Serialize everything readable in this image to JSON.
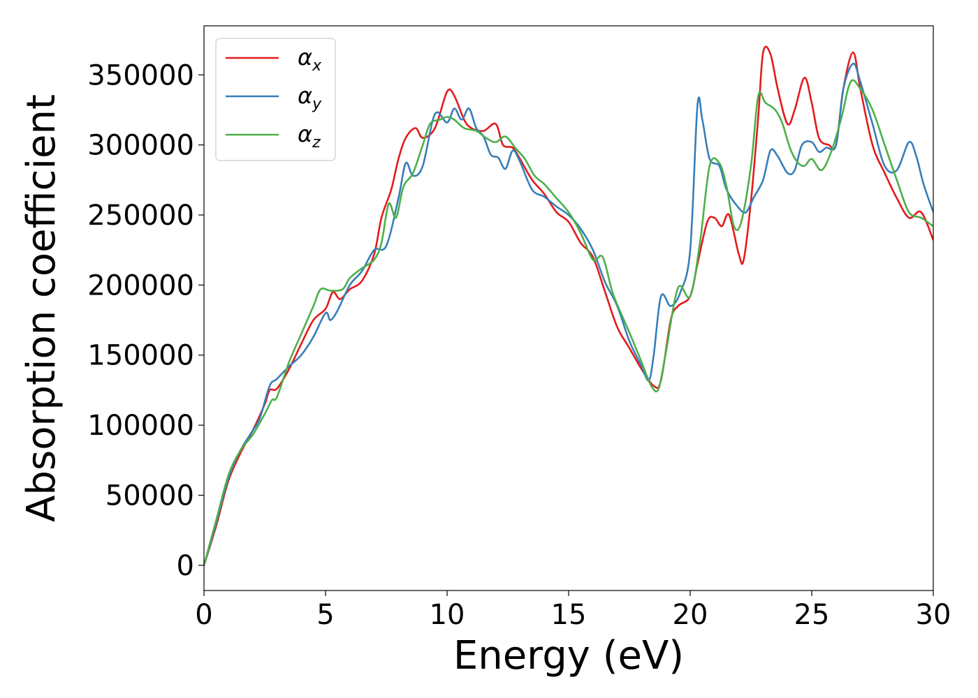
{
  "chart_data": {
    "type": "line",
    "title": "",
    "xlabel": "Energy (eV)",
    "ylabel": "Absorption coefficient",
    "xlim": [
      0,
      30
    ],
    "ylim": [
      -18000,
      385000
    ],
    "xticks": [
      0,
      5,
      10,
      15,
      20,
      25,
      30
    ],
    "xtick_labels": [
      "0",
      "5",
      "10",
      "15",
      "20",
      "25",
      "30"
    ],
    "yticks": [
      0,
      50000,
      100000,
      150000,
      200000,
      250000,
      300000,
      350000
    ],
    "ytick_labels": [
      "0",
      "50000",
      "100000",
      "150000",
      "200000",
      "250000",
      "300000",
      "350000"
    ],
    "grid": false,
    "legend_position": "top-left",
    "series": [
      {
        "name": "α",
        "subscript": "x",
        "color": "#e41a1c",
        "points": [
          [
            0,
            0
          ],
          [
            0.5,
            28000
          ],
          [
            1,
            60000
          ],
          [
            1.5,
            80000
          ],
          [
            2,
            96000
          ],
          [
            2.5,
            115000
          ],
          [
            2.7,
            125000
          ],
          [
            3,
            126000
          ],
          [
            3.5,
            140000
          ],
          [
            4,
            158000
          ],
          [
            4.5,
            175000
          ],
          [
            5,
            183000
          ],
          [
            5.3,
            195000
          ],
          [
            5.6,
            190000
          ],
          [
            6,
            197000
          ],
          [
            6.5,
            203000
          ],
          [
            7,
            222000
          ],
          [
            7.3,
            248000
          ],
          [
            7.7,
            268000
          ],
          [
            8,
            290000
          ],
          [
            8.3,
            305000
          ],
          [
            8.7,
            312000
          ],
          [
            9,
            305000
          ],
          [
            9.5,
            312000
          ],
          [
            10,
            338000
          ],
          [
            10.3,
            335000
          ],
          [
            10.7,
            318000
          ],
          [
            11,
            312000
          ],
          [
            11.5,
            310000
          ],
          [
            12,
            315000
          ],
          [
            12.3,
            300000
          ],
          [
            12.7,
            298000
          ],
          [
            13,
            290000
          ],
          [
            13.5,
            275000
          ],
          [
            14,
            265000
          ],
          [
            14.5,
            252000
          ],
          [
            15,
            245000
          ],
          [
            15.5,
            230000
          ],
          [
            16,
            220000
          ],
          [
            16.5,
            195000
          ],
          [
            17,
            170000
          ],
          [
            17.5,
            155000
          ],
          [
            18,
            140000
          ],
          [
            18.5,
            128000
          ],
          [
            18.8,
            132000
          ],
          [
            19.2,
            175000
          ],
          [
            19.5,
            185000
          ],
          [
            20,
            192000
          ],
          [
            20.3,
            215000
          ],
          [
            20.7,
            245000
          ],
          [
            21,
            248000
          ],
          [
            21.3,
            242000
          ],
          [
            21.6,
            250000
          ],
          [
            22,
            222000
          ],
          [
            22.2,
            218000
          ],
          [
            22.5,
            260000
          ],
          [
            22.8,
            320000
          ],
          [
            23,
            366000
          ],
          [
            23.3,
            365000
          ],
          [
            23.6,
            340000
          ],
          [
            24,
            315000
          ],
          [
            24.3,
            325000
          ],
          [
            24.7,
            348000
          ],
          [
            25,
            330000
          ],
          [
            25.3,
            305000
          ],
          [
            25.7,
            300000
          ],
          [
            26,
            300000
          ],
          [
            26.3,
            340000
          ],
          [
            26.7,
            366000
          ],
          [
            27,
            340000
          ],
          [
            27.5,
            300000
          ],
          [
            28,
            280000
          ],
          [
            28.5,
            262000
          ],
          [
            29,
            248000
          ],
          [
            29.5,
            252000
          ],
          [
            30,
            232000
          ]
        ]
      },
      {
        "name": "α",
        "subscript": "y",
        "color": "#377eb8",
        "points": [
          [
            0,
            0
          ],
          [
            0.5,
            30000
          ],
          [
            1,
            62000
          ],
          [
            1.5,
            82000
          ],
          [
            2,
            96000
          ],
          [
            2.3,
            105000
          ],
          [
            2.7,
            128000
          ],
          [
            3,
            133000
          ],
          [
            3.5,
            142000
          ],
          [
            4,
            150000
          ],
          [
            4.5,
            163000
          ],
          [
            5,
            180000
          ],
          [
            5.2,
            175000
          ],
          [
            5.5,
            182000
          ],
          [
            6,
            200000
          ],
          [
            6.5,
            210000
          ],
          [
            7,
            225000
          ],
          [
            7.5,
            228000
          ],
          [
            8,
            262000
          ],
          [
            8.3,
            287000
          ],
          [
            8.6,
            278000
          ],
          [
            9,
            285000
          ],
          [
            9.5,
            322000
          ],
          [
            10,
            316000
          ],
          [
            10.3,
            326000
          ],
          [
            10.6,
            318000
          ],
          [
            10.9,
            326000
          ],
          [
            11.2,
            312000
          ],
          [
            11.5,
            306000
          ],
          [
            11.8,
            293000
          ],
          [
            12.1,
            291000
          ],
          [
            12.4,
            283000
          ],
          [
            12.7,
            296000
          ],
          [
            13,
            288000
          ],
          [
            13.5,
            268000
          ],
          [
            14,
            263000
          ],
          [
            14.5,
            256000
          ],
          [
            15,
            250000
          ],
          [
            15.5,
            240000
          ],
          [
            16,
            225000
          ],
          [
            16.5,
            202000
          ],
          [
            17,
            185000
          ],
          [
            17.5,
            160000
          ],
          [
            18,
            142000
          ],
          [
            18.3,
            132000
          ],
          [
            18.5,
            150000
          ],
          [
            18.8,
            192000
          ],
          [
            19.2,
            185000
          ],
          [
            19.6,
            195000
          ],
          [
            20,
            225000
          ],
          [
            20.3,
            328000
          ],
          [
            20.5,
            318000
          ],
          [
            20.8,
            290000
          ],
          [
            21.2,
            285000
          ],
          [
            21.5,
            268000
          ],
          [
            22,
            255000
          ],
          [
            22.3,
            252000
          ],
          [
            22.6,
            262000
          ],
          [
            23,
            275000
          ],
          [
            23.3,
            296000
          ],
          [
            23.6,
            292000
          ],
          [
            24,
            280000
          ],
          [
            24.3,
            282000
          ],
          [
            24.6,
            300000
          ],
          [
            25,
            302000
          ],
          [
            25.3,
            295000
          ],
          [
            25.6,
            298000
          ],
          [
            26,
            300000
          ],
          [
            26.3,
            340000
          ],
          [
            26.7,
            358000
          ],
          [
            27,
            345000
          ],
          [
            27.5,
            315000
          ],
          [
            28,
            285000
          ],
          [
            28.5,
            282000
          ],
          [
            29,
            302000
          ],
          [
            29.3,
            292000
          ],
          [
            29.6,
            272000
          ],
          [
            30,
            252000
          ]
        ]
      },
      {
        "name": "α",
        "subscript": "z",
        "color": "#4daf4a",
        "points": [
          [
            0,
            0
          ],
          [
            0.5,
            32000
          ],
          [
            1,
            64000
          ],
          [
            1.5,
            82000
          ],
          [
            2,
            93000
          ],
          [
            2.5,
            108000
          ],
          [
            2.8,
            118000
          ],
          [
            3,
            120000
          ],
          [
            3.5,
            145000
          ],
          [
            4,
            165000
          ],
          [
            4.5,
            185000
          ],
          [
            4.8,
            197000
          ],
          [
            5.2,
            196000
          ],
          [
            5.7,
            197000
          ],
          [
            6,
            205000
          ],
          [
            6.5,
            212000
          ],
          [
            7,
            218000
          ],
          [
            7.3,
            230000
          ],
          [
            7.6,
            258000
          ],
          [
            7.9,
            248000
          ],
          [
            8.2,
            270000
          ],
          [
            8.6,
            280000
          ],
          [
            9,
            300000
          ],
          [
            9.3,
            315000
          ],
          [
            9.7,
            318000
          ],
          [
            10,
            320000
          ],
          [
            10.3,
            318000
          ],
          [
            10.7,
            312000
          ],
          [
            11.2,
            310000
          ],
          [
            11.6,
            305000
          ],
          [
            12,
            302000
          ],
          [
            12.4,
            306000
          ],
          [
            12.8,
            298000
          ],
          [
            13.2,
            290000
          ],
          [
            13.6,
            278000
          ],
          [
            14,
            272000
          ],
          [
            14.5,
            262000
          ],
          [
            15,
            252000
          ],
          [
            15.5,
            237000
          ],
          [
            16,
            218000
          ],
          [
            16.4,
            220000
          ],
          [
            16.8,
            195000
          ],
          [
            17.2,
            178000
          ],
          [
            17.6,
            162000
          ],
          [
            18,
            145000
          ],
          [
            18.4,
            128000
          ],
          [
            18.7,
            126000
          ],
          [
            19,
            152000
          ],
          [
            19.5,
            198000
          ],
          [
            20,
            192000
          ],
          [
            20.4,
            230000
          ],
          [
            20.8,
            285000
          ],
          [
            21.2,
            287000
          ],
          [
            21.5,
            270000
          ],
          [
            21.8,
            242000
          ],
          [
            22.1,
            245000
          ],
          [
            22.5,
            285000
          ],
          [
            22.8,
            335000
          ],
          [
            23.1,
            330000
          ],
          [
            23.5,
            325000
          ],
          [
            23.8,
            315000
          ],
          [
            24.1,
            298000
          ],
          [
            24.4,
            288000
          ],
          [
            24.7,
            285000
          ],
          [
            25,
            290000
          ],
          [
            25.4,
            282000
          ],
          [
            25.8,
            295000
          ],
          [
            26.2,
            318000
          ],
          [
            26.6,
            345000
          ],
          [
            27,
            340000
          ],
          [
            27.5,
            325000
          ],
          [
            28,
            300000
          ],
          [
            28.5,
            275000
          ],
          [
            29,
            252000
          ],
          [
            29.5,
            248000
          ],
          [
            30,
            242000
          ]
        ]
      }
    ]
  }
}
